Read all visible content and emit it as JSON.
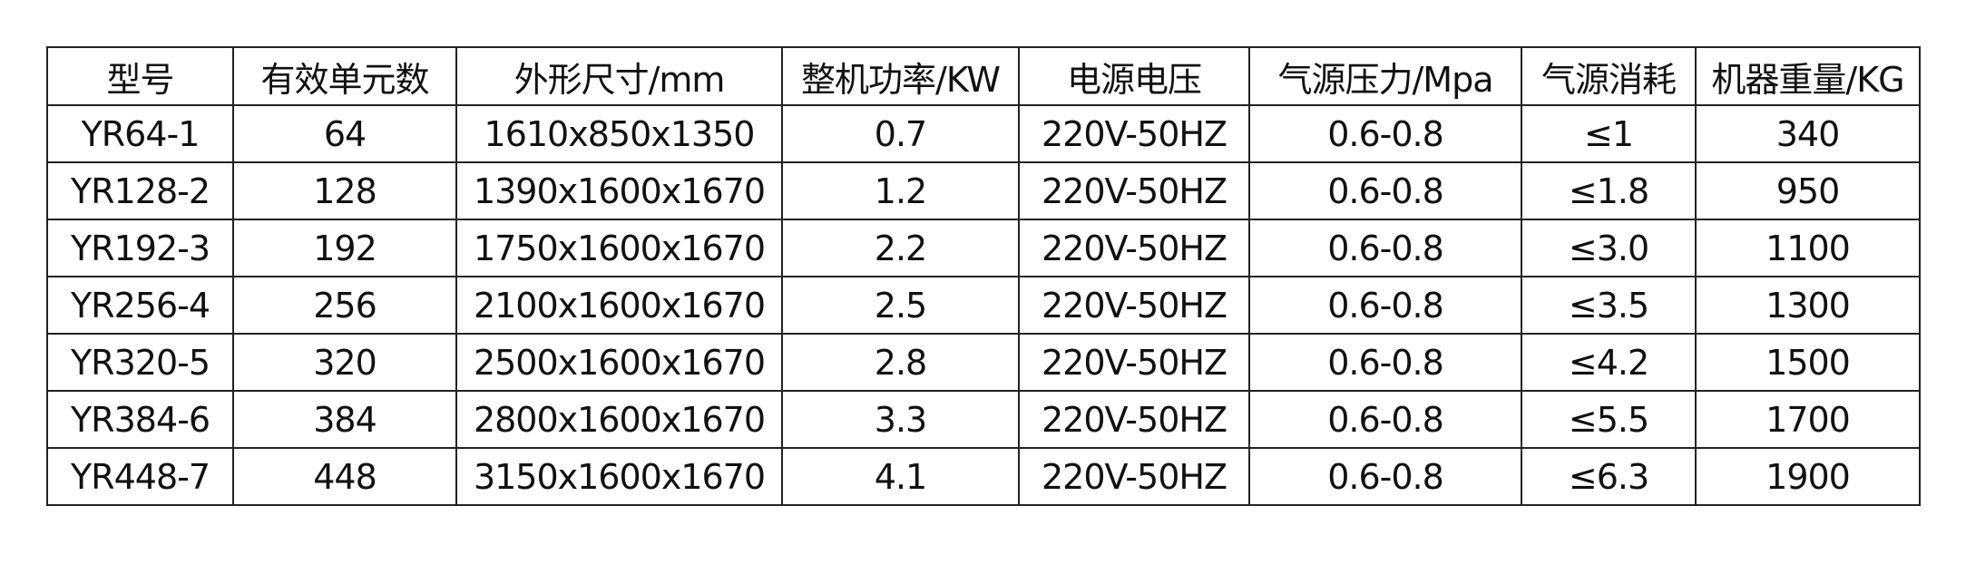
{
  "table": {
    "header": [
      "型号",
      "有效单元数",
      "外形尺寸/mm",
      "整机功率/KW",
      "电源电压",
      "气源压力/Mpa",
      "气源消耗",
      "机器重量/KG"
    ],
    "rows": [
      [
        "YR64-1",
        "64",
        "1610x850x1350",
        "0.7",
        "220V-50HZ",
        "0.6-0.8",
        "≤1",
        "340"
      ],
      [
        "YR128-2",
        "128",
        "1390x1600x1670",
        "1.2",
        "220V-50HZ",
        "0.6-0.8",
        "≤1.8",
        "950"
      ],
      [
        "YR192-3",
        "192",
        "1750x1600x1670",
        "2.2",
        "220V-50HZ",
        "0.6-0.8",
        "≤3.0",
        "1100"
      ],
      [
        "YR256-4",
        "256",
        "2100x1600x1670",
        "2.5",
        "220V-50HZ",
        "0.6-0.8",
        "≤3.5",
        "1300"
      ],
      [
        "YR320-5",
        "320",
        "2500x1600x1670",
        "2.8",
        "220V-50HZ",
        "0.6-0.8",
        "≤4.2",
        "1500"
      ],
      [
        "YR384-6",
        "384",
        "2800x1600x1670",
        "3.3",
        "220V-50HZ",
        "0.6-0.8",
        "≤5.5",
        "1700"
      ],
      [
        "YR448-7",
        "448",
        "3150x1600x1670",
        "4.1",
        "220V-50HZ",
        "0.6-0.8",
        "≤6.3",
        "1900"
      ]
    ]
  }
}
